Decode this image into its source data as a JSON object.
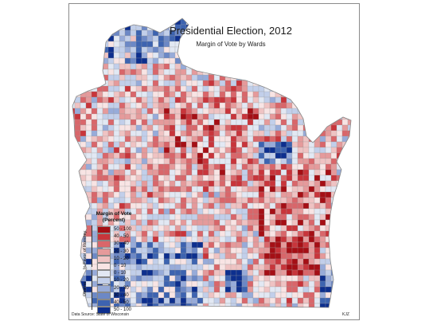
{
  "map": {
    "title": "Presidential Election, 2012",
    "subtitle": "Margin of Vote by Wards",
    "source": "Data Source: State of Wisconsin",
    "author": "KJZ"
  },
  "legend": {
    "title_line1": "Margin of Vote",
    "title_line2": "(Percent)",
    "romney_label": "In Favor of Romney",
    "obama_label": "Obama",
    "classes": [
      {
        "label": "50 - 100",
        "color": "#a50f15"
      },
      {
        "label": "40 - 50",
        "color": "#c8353b"
      },
      {
        "label": "30 - 40",
        "color": "#d9666a"
      },
      {
        "label": "20 - 30",
        "color": "#e59a9b"
      },
      {
        "label": "10 - 20",
        "color": "#efc3c3"
      },
      {
        "label": "0 - 10",
        "color": "#f8e4e4"
      },
      {
        "label": "0 - 10",
        "color": "#e2e8f3"
      },
      {
        "label": "10 - 20",
        "color": "#c2cfea"
      },
      {
        "label": "20 - 30",
        "color": "#97abd9"
      },
      {
        "label": "30 - 40",
        "color": "#6c88c6"
      },
      {
        "label": "40 - 50",
        "color": "#3d63b0"
      },
      {
        "label": "50 - 100",
        "color": "#0d2f8e"
      }
    ]
  }
}
